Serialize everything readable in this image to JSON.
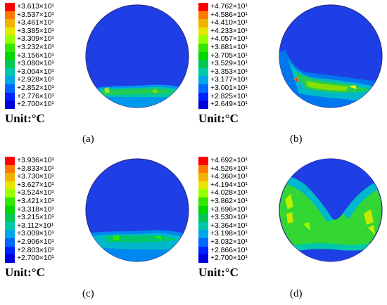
{
  "colors": {
    "legend": [
      "#ff0000",
      "#ff7a00",
      "#f2b200",
      "#e6e600",
      "#99ff00",
      "#33e600",
      "#00d600",
      "#00c853",
      "#00c8aa",
      "#00a6e6",
      "#0066ff",
      "#0022ff",
      "#0000dd"
    ],
    "disk_blue": "#1f3fe6"
  },
  "unit_label": "Unit:°C",
  "panels": [
    {
      "caption": "(a)",
      "legend": [
        "+3.613×10¹",
        "+3.537×10¹",
        "+3.461×10¹",
        "+3.385×10¹",
        "+3.309×10¹",
        "+3.232×10¹",
        "+3.156×10¹",
        "+3.080×10¹",
        "+3.004×10¹",
        "+2.928×10¹",
        "+2.852×10¹",
        "+2.776×10¹",
        "+2.700×10¹"
      ]
    },
    {
      "caption": "(b)",
      "legend": [
        "+4.762×10¹",
        "+4.586×10¹",
        "+4.410×10¹",
        "+4.233×10¹",
        "+4.057×10¹",
        "+3.881×10¹",
        "+3.705×10¹",
        "+3.529×10¹",
        "+3.353×10¹",
        "+3.177×10¹",
        "+3.001×10¹",
        "+2.825×10¹",
        "+2.649×10¹"
      ]
    },
    {
      "caption": "(c)",
      "legend": [
        "+3.936×10¹",
        "+3.833×10¹",
        "+3.730×10¹",
        "+3.627×10¹",
        "+3.524×10¹",
        "+3.421×10¹",
        "+3.318×10¹",
        "+3.215×10¹",
        "+3.112×10¹",
        "+3.009×10¹",
        "+2.906×10¹",
        "+2.803×10¹",
        "+2.700×10¹"
      ]
    },
    {
      "caption": "(d)",
      "legend": [
        "+4.692×10¹",
        "+4.526×10¹",
        "+4.360×10¹",
        "+4.194×10¹",
        "+4.028×10¹",
        "+3.862×10¹",
        "+3.696×10¹",
        "+3.530×10¹",
        "+3.364×10¹",
        "+3.198×10¹",
        "+3.032×10¹",
        "+2.866×10¹",
        "+2.700×10¹"
      ]
    }
  ]
}
